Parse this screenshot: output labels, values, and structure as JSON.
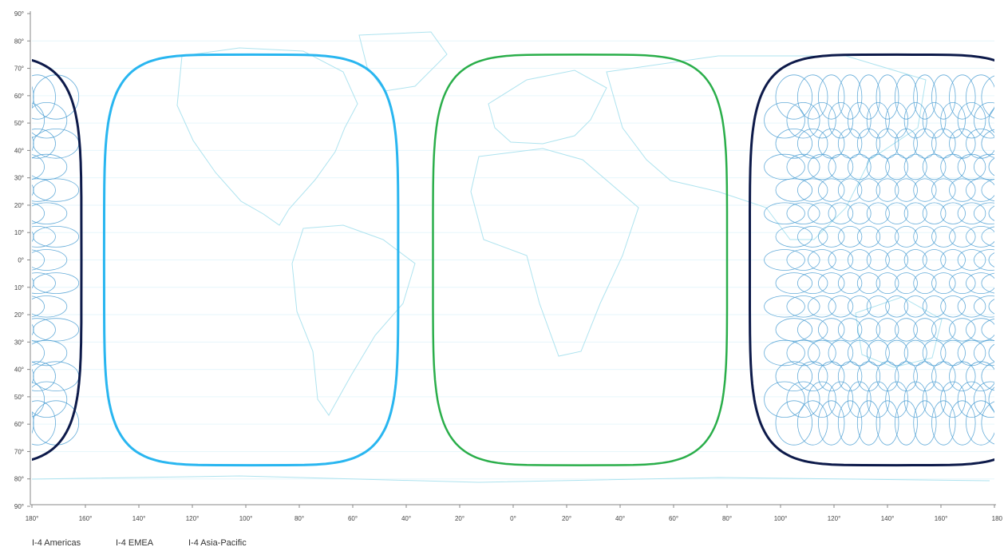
{
  "map": {
    "y_ticks": [
      "90°",
      "80°",
      "70°",
      "60°",
      "50°",
      "40°",
      "30°",
      "20°",
      "10°",
      "0°",
      "10°",
      "20°",
      "30°",
      "40°",
      "50°",
      "60°",
      "70°",
      "80°",
      "90°"
    ],
    "x_ticks": [
      "180°",
      "160°",
      "140°",
      "120°",
      "100°",
      "80°",
      "60°",
      "40°",
      "20°",
      "0°",
      "20°",
      "40°",
      "60°",
      "80°",
      "100°",
      "120°",
      "140°",
      "160°",
      "180"
    ],
    "regions": [
      {
        "name": "I-4 Americas",
        "color": "#29b6f0",
        "center_lon": -98
      },
      {
        "name": "I-4 EMEA",
        "color": "#2aae4a",
        "center_lon": 25
      },
      {
        "name": "I-4 Asia-Pacific",
        "color": "#0d1a4a",
        "center_lon": 143.5
      }
    ],
    "coverage_lat_limit": 75,
    "spot_beam_color": "#4a9ed2"
  },
  "legend": {
    "americas_label": "I-4 Americas",
    "emea_label": "I-4 EMEA",
    "apac_label": "I-4 Asia-Pacific"
  }
}
